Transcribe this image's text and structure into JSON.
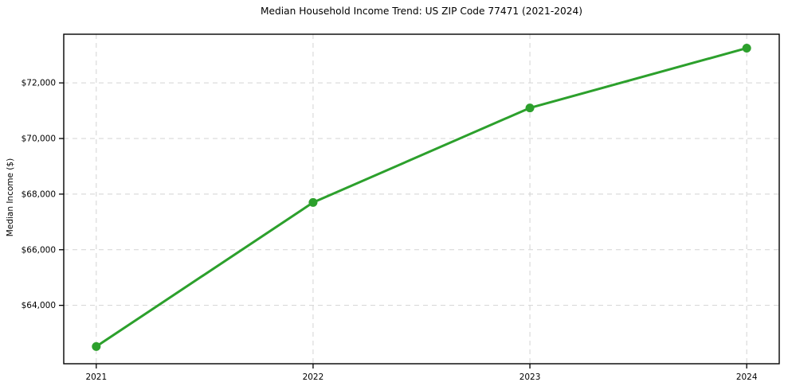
{
  "chart_data": {
    "type": "line",
    "title": "Median Household Income Trend: US ZIP Code 77471 (2021-2024)",
    "xlabel": "",
    "ylabel": "Median Income ($)",
    "x": [
      2021,
      2022,
      2023,
      2024
    ],
    "x_tick_labels": [
      "2021",
      "2022",
      "2023",
      "2024"
    ],
    "values": [
      62520,
      67700,
      71100,
      73250
    ],
    "y_ticks": [
      64000,
      66000,
      68000,
      70000,
      72000
    ],
    "y_tick_labels": [
      "$64,000",
      "$66,000",
      "$68,000",
      "$70,000",
      "$72,000"
    ],
    "xlim": [
      2020.85,
      2024.15
    ],
    "ylim": [
      61900,
      73750
    ],
    "grid": true,
    "grid_style": "dashed",
    "legend_position": "none",
    "line_color": "#2ca02c",
    "marker": "circle",
    "colors": {
      "grid": "#d3d3d3",
      "axis": "#000000",
      "text": "#000000",
      "background": "#ffffff"
    }
  }
}
